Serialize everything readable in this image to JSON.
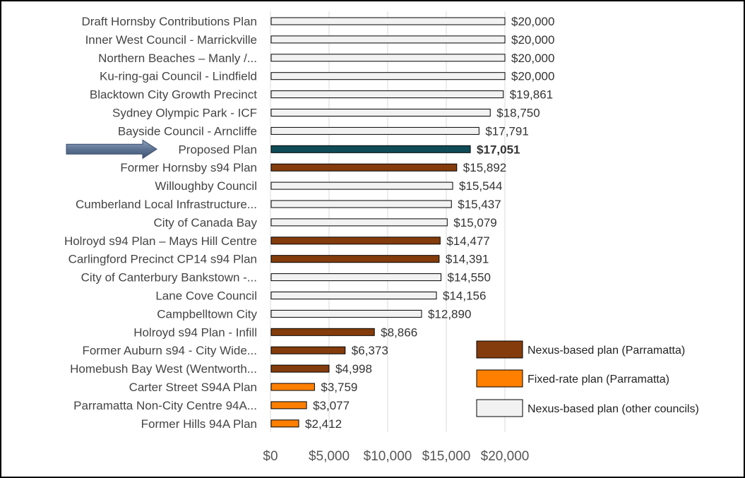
{
  "chart_data": {
    "type": "bar",
    "orientation": "horizontal",
    "title": "",
    "xlabel": "",
    "ylabel": "",
    "xlim": [
      0,
      20000
    ],
    "xticks": [
      0,
      5000,
      10000,
      15000,
      20000
    ],
    "xtick_labels": [
      "$0",
      "$5,000",
      "$10,000",
      "$15,000",
      "$20,000"
    ],
    "grid": "vertical",
    "legend_position": "right",
    "highlight_category": "Proposed Plan",
    "series_styles": {
      "nexus_parramatta": {
        "label": "Nexus-based plan (Parramatta)",
        "color": "#843C0C"
      },
      "fixed_parramatta": {
        "label": "Fixed-rate plan (Parramatta)",
        "color": "#FF7F00"
      },
      "nexus_other": {
        "label": "Nexus-based plan (other councils)",
        "color": "#F2F2F2"
      },
      "proposed": {
        "label": "",
        "color": "#0F4C57"
      }
    },
    "legend": [
      "nexus_parramatta",
      "fixed_parramatta",
      "nexus_other"
    ],
    "bars": [
      {
        "category": "Draft Hornsby Contributions Plan",
        "value": 20000,
        "label": "$20,000",
        "group": "nexus_other"
      },
      {
        "category": "Inner West Council - Marrickville",
        "value": 20000,
        "label": "$20,000",
        "group": "nexus_other"
      },
      {
        "category": "Northern Beaches – Manly /...",
        "value": 20000,
        "label": "$20,000",
        "group": "nexus_other"
      },
      {
        "category": "Ku-ring-gai Council - Lindfield",
        "value": 20000,
        "label": "$20,000",
        "group": "nexus_other"
      },
      {
        "category": "Blacktown City Growth Precinct",
        "value": 19861,
        "label": "$19,861",
        "group": "nexus_other"
      },
      {
        "category": "Sydney Olympic Park - ICF",
        "value": 18750,
        "label": "$18,750",
        "group": "nexus_other"
      },
      {
        "category": "Bayside Council - Arncliffe",
        "value": 17791,
        "label": "$17,791",
        "group": "nexus_other"
      },
      {
        "category": "Proposed Plan",
        "value": 17051,
        "label": "$17,051",
        "group": "proposed"
      },
      {
        "category": "Former Hornsby s94 Plan",
        "value": 15892,
        "label": "$15,892",
        "group": "nexus_parramatta"
      },
      {
        "category": "Willoughby Council",
        "value": 15544,
        "label": "$15,544",
        "group": "nexus_other"
      },
      {
        "category": "Cumberland Local Infrastructure...",
        "value": 15437,
        "label": "$15,437",
        "group": "nexus_other"
      },
      {
        "category": "City of Canada Bay",
        "value": 15079,
        "label": "$15,079",
        "group": "nexus_other"
      },
      {
        "category": "Holroyd s94 Plan – Mays Hill Centre",
        "value": 14477,
        "label": "$14,477",
        "group": "nexus_parramatta"
      },
      {
        "category": "Carlingford Precinct CP14 s94 Plan",
        "value": 14391,
        "label": "$14,391",
        "group": "nexus_parramatta"
      },
      {
        "category": "City of Canterbury Bankstown -...",
        "value": 14550,
        "label": "$14,550",
        "group": "nexus_other"
      },
      {
        "category": "Lane Cove Council",
        "value": 14156,
        "label": "$14,156",
        "group": "nexus_other"
      },
      {
        "category": "Campbelltown City",
        "value": 12890,
        "label": "$12,890",
        "group": "nexus_other"
      },
      {
        "category": "Holroyd s94 Plan - Infill",
        "value": 8866,
        "label": "$8,866",
        "group": "nexus_parramatta"
      },
      {
        "category": "Former Auburn s94 - City Wide...",
        "value": 6373,
        "label": "$6,373",
        "group": "nexus_parramatta"
      },
      {
        "category": "Homebush Bay West (Wentworth...",
        "value": 4998,
        "label": "$4,998",
        "group": "nexus_parramatta"
      },
      {
        "category": "Carter Street S94A Plan",
        "value": 3759,
        "label": "$3,759",
        "group": "fixed_parramatta"
      },
      {
        "category": "Parramatta Non-City Centre 94A...",
        "value": 3077,
        "label": "$3,077",
        "group": "fixed_parramatta"
      },
      {
        "category": "Former Hills 94A Plan",
        "value": 2412,
        "label": "$2,412",
        "group": "fixed_parramatta"
      }
    ]
  }
}
